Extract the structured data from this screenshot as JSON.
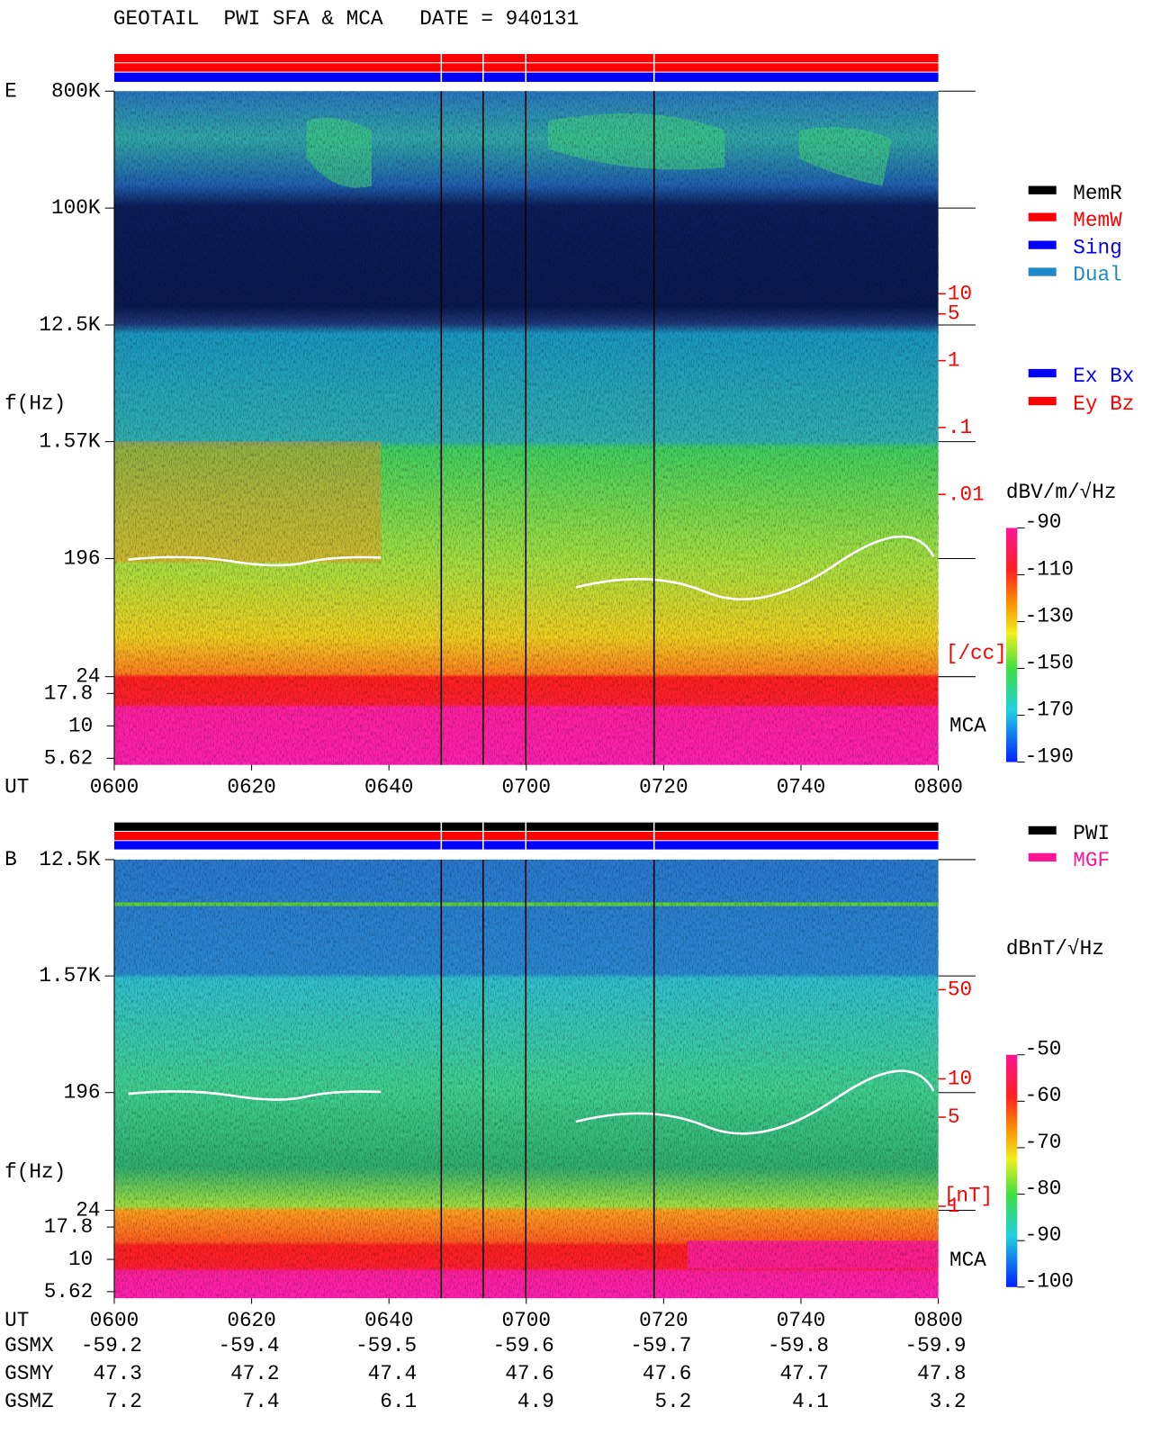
{
  "title": "GEOTAIL  PWI SFA & MCA   DATE = 940131",
  "chart_data": [
    {
      "type": "spectrogram",
      "panel_label": "E",
      "ylabel": "f(Hz)",
      "xlabel": "UT",
      "log_y": true,
      "ylim": [
        5,
        800000
      ],
      "yticks": [
        {
          "value": 800000,
          "label": "800K"
        },
        {
          "value": 100000,
          "label": "100K"
        },
        {
          "value": 12500,
          "label": "12.5K"
        },
        {
          "value": 1570,
          "label": "1.57K"
        },
        196,
        24
      ],
      "mca_yticks": [
        17.8,
        10,
        5.62
      ],
      "mca_label": "MCA",
      "xlim": [
        600,
        800
      ],
      "xticks": [
        {
          "value": 600,
          "label": "0600"
        },
        {
          "value": 620,
          "label": "0620"
        },
        {
          "value": 640,
          "label": "0640"
        },
        {
          "value": 700,
          "label": "0700"
        },
        {
          "value": 720,
          "label": "0720"
        },
        {
          "value": 740,
          "label": "0740"
        },
        {
          "value": 800,
          "label": "0800"
        }
      ],
      "right_scale": {
        "label": "[/cc]",
        "color": "#ff0000",
        "lim": [
          0.01,
          10
        ],
        "ticks": [
          10,
          5,
          1,
          {
            "value": 0.1,
            "label": ".1"
          },
          {
            "value": 0.01,
            "label": ".01"
          }
        ]
      },
      "colorbar": {
        "label": "dBV/m/√Hz",
        "lim": [
          -190,
          -90
        ],
        "ticks": [
          -90,
          -110,
          -130,
          -150,
          -170,
          -190
        ]
      },
      "legends": [
        {
          "items": [
            {
              "name": "MemR",
              "color": "#000000"
            },
            {
              "name": "MemW",
              "color": "#ff0000"
            },
            {
              "name": "Sing",
              "color": "#0000ff"
            },
            {
              "name": "Dual",
              "color": "#1e88c8"
            }
          ]
        },
        {
          "items": [
            {
              "name": "Ex Bx",
              "color": "#0000ff"
            },
            {
              "name": "Ey Bz",
              "color": "#ff0000"
            }
          ]
        }
      ]
    },
    {
      "type": "spectrogram",
      "panel_label": "B",
      "ylabel": "f(Hz)",
      "xlabel": "UT",
      "log_y": true,
      "ylim": [
        5,
        12500
      ],
      "yticks": [
        {
          "value": 12500,
          "label": "12.5K"
        },
        {
          "value": 1570,
          "label": "1.57K"
        },
        196,
        24
      ],
      "mca_yticks": [
        17.8,
        10,
        5.62
      ],
      "mca_label": "MCA",
      "xlim": [
        600,
        800
      ],
      "xticks": [
        {
          "value": 600,
          "label": "0600"
        },
        {
          "value": 620,
          "label": "0620"
        },
        {
          "value": 640,
          "label": "0640"
        },
        {
          "value": 700,
          "label": "0700"
        },
        {
          "value": 720,
          "label": "0720"
        },
        {
          "value": 740,
          "label": "0740"
        },
        {
          "value": 800,
          "label": "0800"
        }
      ],
      "right_scale": {
        "label": "[nT]",
        "color": "#ff0000",
        "lim": [
          1,
          50
        ],
        "ticks": [
          50,
          10,
          5,
          1
        ]
      },
      "colorbar": {
        "label": "dBnT/√Hz",
        "lim": [
          -100,
          -50
        ],
        "ticks": [
          -50,
          -60,
          -70,
          -80,
          -90,
          -100
        ]
      },
      "legends": [
        {
          "items": [
            {
              "name": "PWI",
              "color": "#000000"
            },
            {
              "name": "MGF",
              "color": "#ff1493"
            }
          ]
        }
      ]
    }
  ],
  "orbit": {
    "rows": [
      {
        "name": "GSMX",
        "values": [
          -59.2,
          -59.4,
          -59.5,
          -59.6,
          -59.7,
          -59.8,
          -59.9
        ]
      },
      {
        "name": "GSMY",
        "values": [
          47.3,
          47.2,
          47.4,
          47.6,
          47.6,
          47.7,
          47.8
        ]
      },
      {
        "name": "GSMZ",
        "values": [
          7.2,
          7.4,
          6.1,
          4.9,
          5.2,
          4.1,
          3.2
        ]
      }
    ]
  }
}
